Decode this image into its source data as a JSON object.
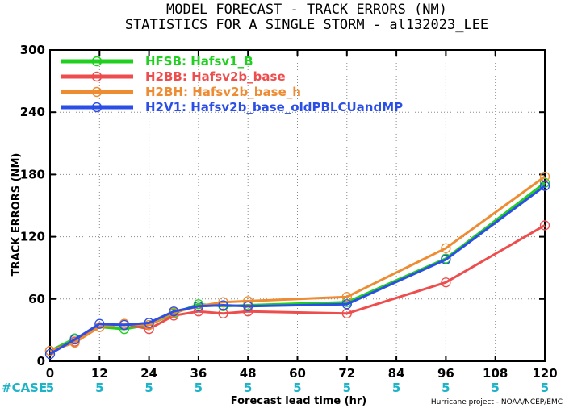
{
  "chart_data": {
    "type": "line",
    "title": "MODEL FORECAST - TRACK ERRORS (NM)",
    "subtitle": "STATISTICS FOR A SINGLE STORM - al132023_LEE",
    "xlabel": "Forecast lead time (hr)",
    "ylabel": "TRACK ERRORS (NM)",
    "xlim": [
      0,
      120
    ],
    "ylim": [
      0,
      300
    ],
    "x_ticks": [
      0,
      12,
      24,
      36,
      48,
      60,
      72,
      84,
      96,
      108,
      120
    ],
    "y_ticks": [
      {
        "value": 0,
        "label": "0"
      },
      {
        "value": 60,
        "label": "60"
      },
      {
        "value": 120,
        "label": "120"
      },
      {
        "value": 180,
        "label": "180"
      },
      {
        "value": 240,
        "label": "240"
      },
      {
        "value": 300,
        "label": "300"
      }
    ],
    "legend_position": "top-left",
    "series": [
      {
        "name": "HFSB: Hafsv1_B",
        "color": "#1fd01f",
        "x": [
          0,
          6,
          12,
          18,
          24,
          30,
          36,
          42,
          48,
          72,
          96,
          120
        ],
        "y": [
          10,
          22,
          33,
          31,
          35,
          46,
          55,
          53,
          54,
          57,
          99,
          172
        ]
      },
      {
        "name": "H2BB: Hafsv2b_base",
        "color": "#ee4d4d",
        "x": [
          0,
          6,
          12,
          18,
          24,
          30,
          36,
          42,
          48,
          72,
          96,
          120
        ],
        "y": [
          10,
          19,
          33,
          36,
          31,
          44,
          48,
          46,
          48,
          46,
          76,
          131
        ]
      },
      {
        "name": "H2BH: Hafsv2b_base_h",
        "color": "#ee8c33",
        "x": [
          0,
          6,
          12,
          18,
          24,
          30,
          36,
          42,
          48,
          72,
          96,
          120
        ],
        "y": [
          10,
          18,
          33,
          36,
          35,
          47,
          53,
          57,
          58,
          62,
          109,
          178
        ]
      },
      {
        "name": "H2V1: Hafsv2b_base_oldPBLCUandMP",
        "color": "#2b4ee6",
        "x": [
          0,
          6,
          12,
          18,
          24,
          30,
          36,
          42,
          48,
          72,
          96,
          120
        ],
        "y": [
          7,
          21,
          36,
          35,
          37,
          48,
          53,
          54,
          53,
          55,
          98,
          169
        ]
      }
    ],
    "case_label": "#CASE",
    "case_counts": [
      "5",
      "5",
      "5",
      "5",
      "5",
      "5",
      "5",
      "5",
      "5",
      "5",
      "5"
    ],
    "credit": "Hurricane project - NOAA/NCEP/EMC"
  }
}
